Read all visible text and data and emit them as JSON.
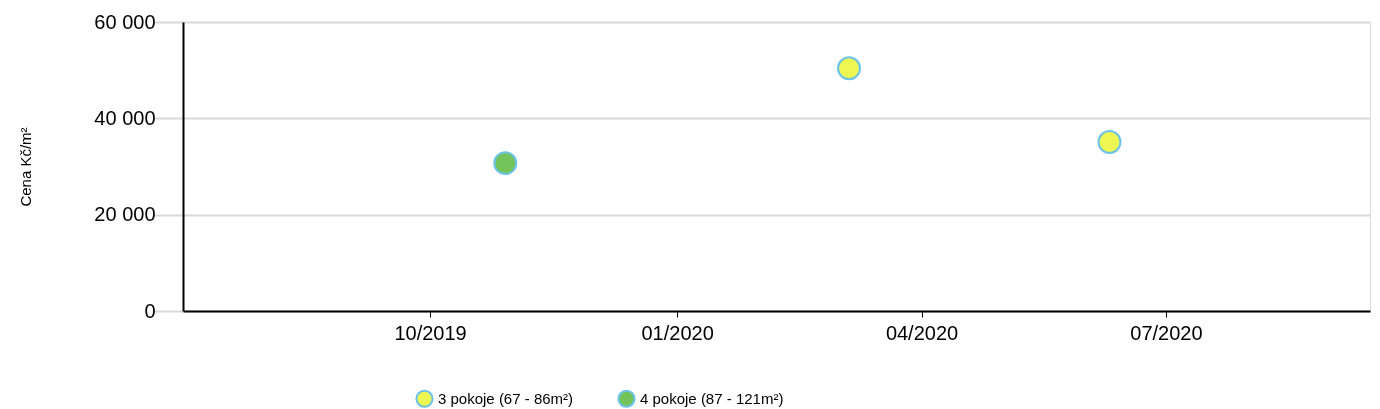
{
  "chart_data": {
    "type": "scatter",
    "ylabel": "Cena Kč/m²",
    "xlim": [
      "2019-07-01",
      "2020-09-15"
    ],
    "xticks": [
      {
        "value": "2019-10-01",
        "label": "10/2019"
      },
      {
        "value": "2020-01-01",
        "label": "01/2020"
      },
      {
        "value": "2020-04-01",
        "label": "04/2020"
      },
      {
        "value": "2020-07-01",
        "label": "07/2020"
      }
    ],
    "ylim": [
      0,
      60000
    ],
    "yticks": [
      {
        "value": 0,
        "label": "0"
      },
      {
        "value": 20000,
        "label": "20 000"
      },
      {
        "value": 40000,
        "label": "40 000"
      },
      {
        "value": 60000,
        "label": "60 000"
      }
    ],
    "series": [
      {
        "name": "3 pokoje (67 - 86m²)",
        "color": "#eef652",
        "x": [
          "2020-03-05",
          "2020-06-10"
        ],
        "values": [
          50400,
          35100
        ]
      },
      {
        "name": "4 pokoje (87 - 121m²)",
        "color": "#72c45a",
        "x": [
          "2019-10-29"
        ],
        "values": [
          30700
        ]
      }
    ],
    "marker": "circle",
    "grid": "y",
    "legend": "bottom"
  }
}
